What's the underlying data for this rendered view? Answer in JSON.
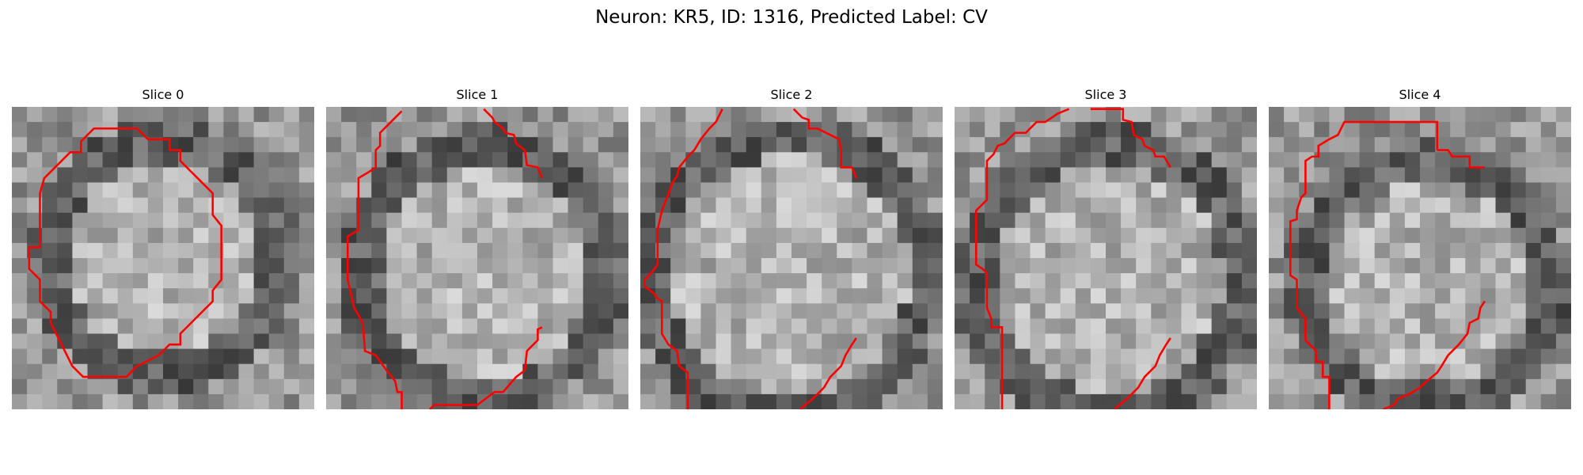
{
  "figure": {
    "title": "Neuron: KR5, ID: 1316, Predicted Label: CV",
    "contour_color": "#ff0000",
    "colormap": "gray",
    "panels": [
      {
        "title": "Slice 0",
        "contours": [
          "M 3.0 6.6 L 5.4 4.2 L 6.4 4.2 L 6.4 3.2 L 7.6 2.0 L 11.6 2.0 L 12.6 3.0 L 14.6 3.0 L 14.6 4.0 L 15.6 4.0 L 15.6 5.0 L 16.6 6.0 L 18.6 8.0 L 18.6 10.0 L 19.4 11.0 L 19.4 16.0 L 18.6 17.0 L 18.6 18.0 L 16.6 20.0 L 15.6 21.0 L 15.6 22.0 L 14.6 22.0 L 13.6 23.0 L 11.6 24.0 L 10.6 25.0 L 6.6 25.0 L 5.6 24.0 L 4.6 22.0 L 3.6 20.0 L 3.6 19.0 L 2.6 18.0 L 2.6 16.0 L 1.6 15.0 L 1.6 13.0 L 2.6 13.0 L 2.6 8.0 Z"
        ]
      },
      {
        "title": "Slice 1",
        "contours": [
          "M 7.0 0.4 L 6.0 1.4 L 5.0 2.4 L 5.0 3.6 L 4.6 4.0 L 4.6 5.6 L 4.0 6.0 L 3.0 6.6 L 3.0 11.4 L 2.0 12.0 L 2.0 16.0 L 2.6 18.6 L 3.4 20.0 L 3.6 22.6 L 4.6 23.0 L 5.6 24.4 L 6.4 25.4 L 6.6 26.4 L 7.0 26.4 L 7.0 28.0",
          "M 9.6 28.0 L 10.0 27.6 L 14.0 27.6 L 15.6 26.4 L 16.4 26.4 L 17.6 25.0 L 18.4 24.4 L 18.6 22.6 L 19.6 21.6 L 19.6 20.6 L 20.0 20.4",
          "M 14.6 0.2 L 15.4 1.0 L 15.6 1.4 L 16.4 2.0 L 16.6 2.4 L 17.4 2.6 L 17.6 3.4 L 18.4 4.0 L 18.6 5.4 L 19.6 5.6 L 20.0 6.6"
        ]
      },
      {
        "title": "Slice 2",
        "contours": [
          "M 7.6 0.2 L 7.0 1.4 L 6.4 2.0 L 5.6 3.0 L 5.0 4.0 L 4.4 4.6 L 3.6 5.6 L 3.4 6.4 L 3.0 7.0 L 2.4 8.6 L 2.0 9.6 L 1.6 11.4 L 1.6 14.6 L 1.0 15.4 L 0.4 16.0 L 0.4 16.6 L 1.4 17.4 L 1.4 17.6 L 2.0 18.0 L 2.0 21.0 L 2.6 22.0 L 3.4 22.6 L 3.6 24.0 L 4.4 24.6 L 4.4 28.0",
          "M 14.8 28.0 L 16.0 27.0 L 17.0 26.0 L 17.6 25.0 L 18.6 24.0 L 19.0 23.0 L 19.6 22.0 L 20.0 21.4",
          "M 14.2 0.2 L 15.0 1.0 L 15.6 1.2 L 15.6 2.0 L 16.4 2.0 L 17.6 2.6 L 18.4 3.0 L 18.6 4.0 L 18.6 5.6 L 19.6 5.6 L 20.0 6.6"
        ]
      },
      {
        "title": "Slice 3",
        "contours": [
          "M 10.6 0.2 L 9.6 0.6 L 8.4 1.4 L 7.6 1.4 L 6.6 2.4 L 5.6 2.4 L 4.6 3.4 L 4.0 3.6 L 3.6 4.4 L 3.0 5.0 L 3.0 8.6 L 2.6 9.0 L 2.0 9.6 L 2.0 14.6 L 2.6 15.0 L 3.0 15.4 L 3.0 18.6 L 3.4 19.6 L 3.4 20.4 L 4.4 20.4 L 4.4 28.0",
          "M 14.8 28.0 L 16.0 27.0 L 17.0 26.0 L 17.6 25.0 L 18.6 24.0 L 19.0 23.0 L 19.6 22.0 L 20.0 21.4",
          "M 12.6 0.2 L 15.6 0.2 L 15.6 1.2 L 16.4 1.4 L 16.6 2.6 L 17.4 3.0 L 17.6 3.6 L 18.4 4.0 L 18.6 4.6 L 19.4 4.6 L 20.0 5.6"
        ]
      },
      {
        "title": "Slice 4",
        "contours": [
          "M 15.6 4.0 L 15.6 1.4 L 7.0 1.4 L 6.4 2.6 L 5.6 3.0 L 4.6 3.6 L 4.6 4.6 L 4.0 4.6 L 3.4 5.0 L 3.4 8.0 L 3.0 8.4 L 2.6 9.6 L 2.6 10.4 L 2.0 10.6 L 2.0 15.6 L 2.6 16.0 L 2.6 18.6 L 3.4 19.6 L 3.4 21.6 L 4.4 22.6 L 4.4 23.6 L 5.0 23.6 L 5.0 25.0 L 5.6 25.0 L 5.6 26.6 L 5.6 28.0",
          "M 10.6 28.0 L 11.6 27.6 L 12.0 27.0 L 13.0 26.6 L 14.0 26.0 L 14.4 25.6 L 15.6 24.6 L 16.0 24.0 L 16.6 23.0 L 17.0 22.6 L 17.6 22.0 L 18.4 21.0 L 18.6 20.0 L 19.4 19.6 L 19.6 18.6 L 20.0 18.0",
          "M 15.6 4.0 L 16.6 4.0 L 17.0 4.6 L 18.6 4.6 L 18.6 5.6 L 20.0 5.6"
        ]
      }
    ]
  }
}
